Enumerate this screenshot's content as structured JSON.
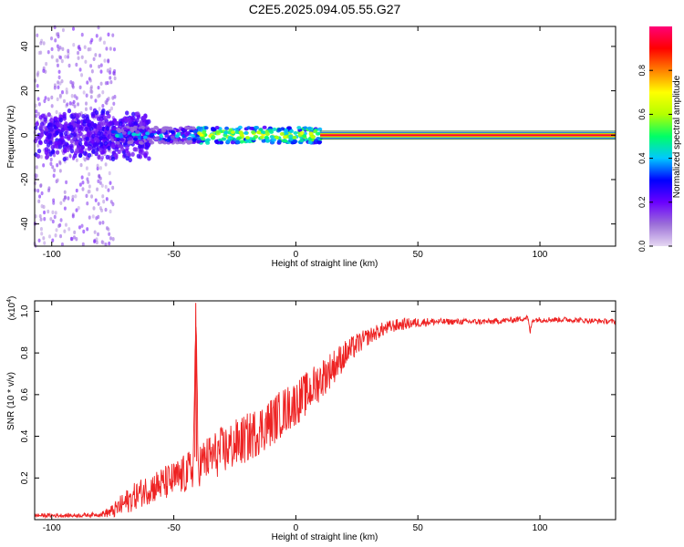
{
  "page_title": "C2E5.2025.094.05.55.G27",
  "chart_data": [
    {
      "panel": "top",
      "type": "heatmap",
      "xlabel": "Height of straight line (km)",
      "ylabel": "Frequency (Hz)",
      "xlim": [
        -107,
        131
      ],
      "ylim": [
        -50,
        49
      ],
      "x_ticks": [
        -100,
        -50,
        0,
        50,
        100
      ],
      "x_tick_labels": [
        "-100",
        "-50",
        "0",
        "50",
        "100"
      ],
      "y_ticks": [
        -40,
        -20,
        0,
        20,
        40
      ],
      "y_tick_labels": [
        "-40",
        "-20",
        "0",
        "20",
        "40"
      ],
      "grid": false,
      "colorbar": {
        "label": "Normalized spectral amplitude",
        "range": [
          0,
          1
        ],
        "ticks": [
          0,
          0.2,
          0.4,
          0.6,
          0.8
        ],
        "tick_labels": [
          "0.0",
          "0.2",
          "0.4",
          "0.6",
          "0.8"
        ],
        "colors": [
          "#e6d8f2",
          "#9b6ed8",
          "#6a00ff",
          "#0000ff",
          "#00c8ff",
          "#00ff66",
          "#b4ff00",
          "#ffff00",
          "#ff8000",
          "#ff0000",
          "#ff0078"
        ]
      },
      "features": [
        {
          "kind": "scattered_noise",
          "x_range": [
            -107,
            -74
          ],
          "freq_range": [
            -50,
            49
          ],
          "amplitude": 0.05
        },
        {
          "kind": "broadband_noise",
          "x_range": [
            -107,
            -60
          ],
          "freq_range": [
            -12,
            12
          ],
          "amplitude": 0.15
        },
        {
          "kind": "carrier_speckle",
          "x_range": [
            -75,
            -40
          ],
          "freq": 0,
          "amplitude": 0.35
        },
        {
          "kind": "carrier_speckle",
          "x_range": [
            -40,
            10
          ],
          "freq": 0,
          "amplitude": 0.6
        },
        {
          "kind": "carrier_steady",
          "x_range": [
            10,
            131
          ],
          "freq": 0,
          "amplitude": 0.95
        },
        {
          "kind": "boundary_lines",
          "freq": [
            -1.8,
            1.8
          ],
          "x_range": [
            10,
            131
          ]
        }
      ]
    },
    {
      "panel": "bottom",
      "type": "line",
      "xlabel": "Height of straight line (km)",
      "ylabel": "SNR (10 * v/v)",
      "scale_label_base": "(x10",
      "scale_label_exp": "4",
      "scale_label_end": ")",
      "xlim": [
        -107,
        131
      ],
      "ylim": [
        0,
        1.05
      ],
      "x_ticks": [
        -100,
        -50,
        0,
        50,
        100
      ],
      "x_tick_labels": [
        "-100",
        "-50",
        "0",
        "50",
        "100"
      ],
      "y_ticks": [
        0.2,
        0.4,
        0.6,
        0.8,
        1.0
      ],
      "y_tick_labels": [
        "0.2",
        "0.4",
        "0.6",
        "0.8",
        "1.0"
      ],
      "line_color": "#ee2222",
      "grid": false,
      "series": [
        {
          "x": [
            -107,
            -100,
            -90,
            -80,
            -75,
            -70,
            -65,
            -60,
            -55,
            -50,
            -45,
            -42,
            -41,
            -40,
            -38,
            -35,
            -30,
            -25,
            -20,
            -15,
            -10,
            -5,
            0,
            5,
            10,
            15,
            20,
            25,
            30,
            35,
            40,
            45,
            50,
            55,
            60,
            70,
            80,
            90,
            95,
            96,
            97,
            100,
            105,
            110,
            120,
            131
          ],
          "y": [
            0.02,
            0.02,
            0.02,
            0.025,
            0.04,
            0.08,
            0.12,
            0.15,
            0.17,
            0.19,
            0.22,
            0.25,
            0.98,
            0.26,
            0.28,
            0.3,
            0.33,
            0.36,
            0.39,
            0.43,
            0.47,
            0.52,
            0.56,
            0.61,
            0.67,
            0.73,
            0.79,
            0.84,
            0.88,
            0.91,
            0.93,
            0.94,
            0.945,
            0.95,
            0.95,
            0.95,
            0.95,
            0.96,
            0.97,
            0.9,
            0.96,
            0.96,
            0.96,
            0.96,
            0.955,
            0.95
          ]
        }
      ],
      "noise_amplitude": [
        {
          "x": -107,
          "a": 0.01
        },
        {
          "x": -80,
          "a": 0.01
        },
        {
          "x": -70,
          "a": 0.06
        },
        {
          "x": -50,
          "a": 0.09
        },
        {
          "x": -30,
          "a": 0.12
        },
        {
          "x": -10,
          "a": 0.12
        },
        {
          "x": 10,
          "a": 0.1
        },
        {
          "x": 30,
          "a": 0.04
        },
        {
          "x": 60,
          "a": 0.015
        },
        {
          "x": 131,
          "a": 0.012
        }
      ]
    }
  ]
}
